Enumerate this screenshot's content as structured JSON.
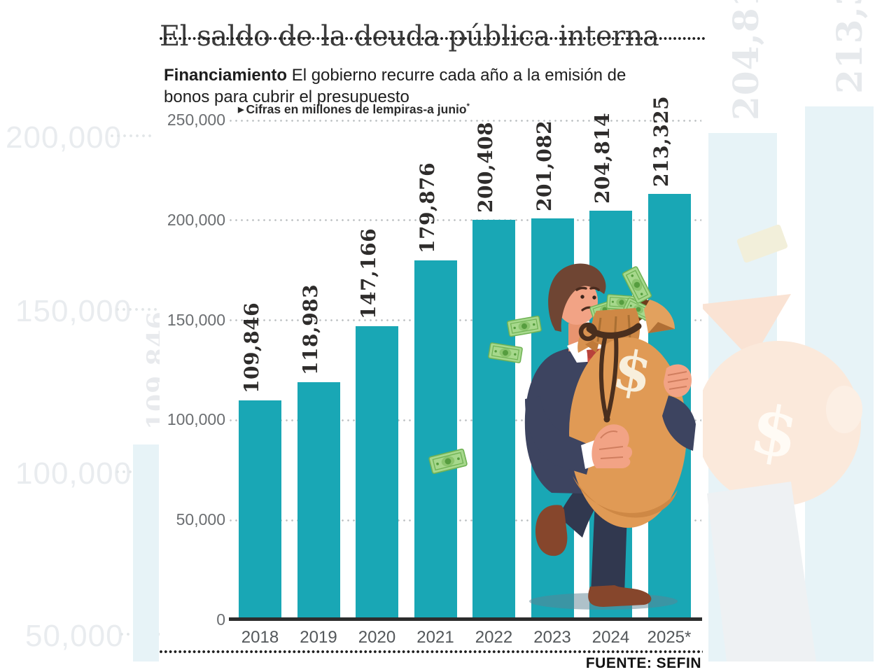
{
  "header": {
    "title": "El saldo de la deuda pública interna",
    "kicker_bold": "Financiamiento",
    "kicker_rest": " El gobierno recurre cada año a la emisión de bonos para cubrir el presupuesto",
    "note_marker": "▶",
    "note_text": "Cifras en millones de lempiras-a junio",
    "note_asterisk": "*"
  },
  "source": "FUENTE: SEFIN",
  "chart_data": {
    "type": "bar",
    "title": "El saldo de la deuda pública interna",
    "subtitle": "Financiamiento: El gobierno recurre cada año a la emisión de bonos para cubrir el presupuesto",
    "units_note": "Cifras en millones de lempiras-a junio*",
    "categories": [
      "2018",
      "2019",
      "2020",
      "2021",
      "2022",
      "2023",
      "2024",
      "2025*"
    ],
    "values": [
      109846,
      118983,
      147166,
      179876,
      200408,
      201082,
      204814,
      213325
    ],
    "value_labels": [
      "109,846",
      "118,983",
      "147,166",
      "179,876",
      "200,408",
      "201,082",
      "204,814",
      "213,325"
    ],
    "y_ticks": [
      "250,000",
      "200,000",
      "150,000",
      "100,000",
      "50,000",
      "0"
    ],
    "tick_values": [
      250000,
      200000,
      150000,
      100000,
      50000,
      0
    ],
    "ylim": [
      0,
      250000
    ],
    "grid": "dotted-horizontal",
    "legend": "none",
    "bar_color": "#19A7B5",
    "source": "FUENTE: SEFIN"
  },
  "watermark": {
    "left_axis_labels": [
      "200,000",
      "150,000",
      "100,000",
      "50,000"
    ],
    "rotated_bar_label_left": "109,846",
    "rotated_bar_labels_right": [
      "204,81",
      "213,3"
    ]
  },
  "illustration": {
    "description": "Worried businessman carrying a large money bag with dollar sign while banknotes fly around",
    "dollar_sign": "$"
  },
  "colors": {
    "bar_teal": "#19A7B5",
    "faint_bar": "#E7F3F7",
    "bag_orange": "#E09A55",
    "suit_navy": "#3D4460",
    "tie_red": "#D14B40",
    "bill_green": "#A6D88C",
    "axis_text": "#6B6E71",
    "title_text": "#3C3C3C"
  }
}
